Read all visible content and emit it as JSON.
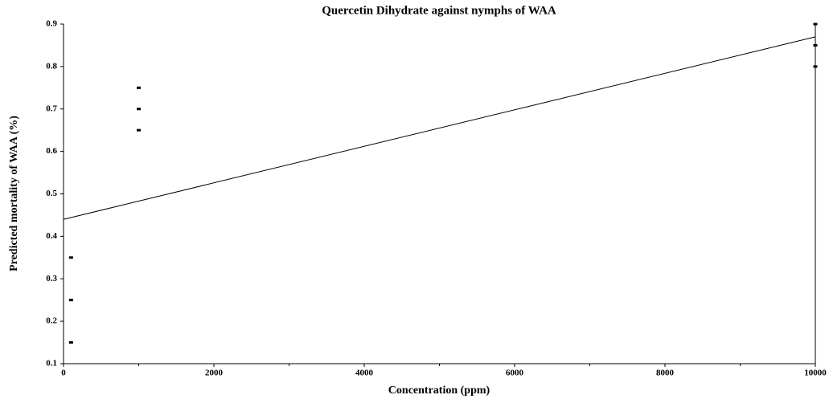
{
  "chart_data": {
    "type": "scatter",
    "title": "Quercetin Dihydrate against nymphs of WAA",
    "x_label": "Concentration (ppm)",
    "y_label": "Predicted mortality of  WAA (%)",
    "series": [
      {
        "color": "#000000",
        "x": [
          100,
          100,
          100,
          1000,
          1000,
          1000,
          10000,
          10000,
          10000
        ],
        "values": [
          0.35,
          0.25,
          0.15,
          0.75,
          0.7,
          0.65,
          0.9,
          0.85,
          0.8
        ]
      }
    ],
    "fit_line": {
      "color": "#000000",
      "x": [
        0,
        10000
      ],
      "values": [
        0.44,
        0.87
      ]
    },
    "xlim": [
      0,
      10000
    ],
    "xticks": [
      0,
      2000,
      4000,
      6000,
      8000,
      10000
    ],
    "xminorticks": [
      1000,
      3000,
      5000,
      7000,
      9000
    ],
    "ylim": [
      0.1,
      0.9
    ],
    "yticks": [
      0.1,
      0.2,
      0.3,
      0.4,
      0.5,
      0.6,
      0.7,
      0.8,
      0.9
    ]
  }
}
